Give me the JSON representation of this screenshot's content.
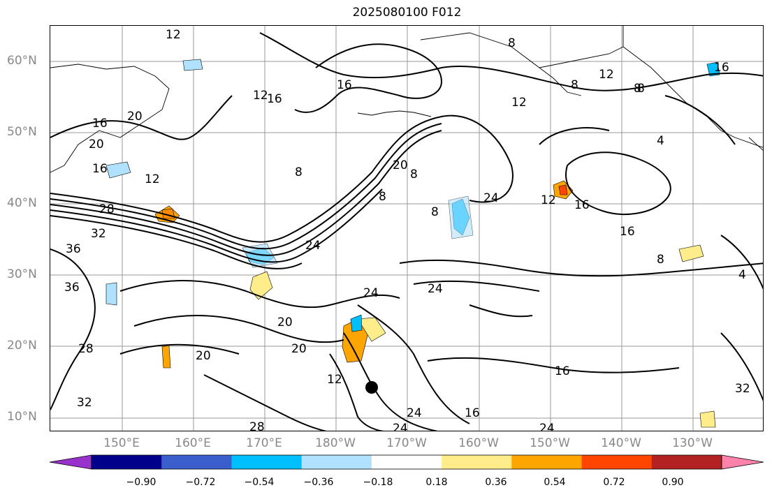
{
  "title": "2025080100 F012",
  "lat_labels": [
    "60°N",
    "50°N",
    "40°N",
    "30°N",
    "20°N",
    "10°N"
  ],
  "lon_labels": [
    "150°E",
    "160°E",
    "170°E",
    "180°W",
    "170°W",
    "160°W",
    "150°W",
    "140°W",
    "130°W"
  ],
  "colorbar": {
    "ticks": [
      "−0.90",
      "−0.72",
      "−0.54",
      "−0.36",
      "−0.18",
      "0.18",
      "0.36",
      "0.54",
      "0.72",
      "0.90"
    ],
    "colors": [
      "#9932cc",
      "#00008b",
      "#3a5fcd",
      "#00bfff",
      "#b0e2ff",
      "#ffffff",
      "#ffec8b",
      "#ffa500",
      "#ff4500",
      "#b22222",
      "#ff82ab"
    ]
  },
  "contour_labels": [
    "12",
    "16",
    "20",
    "16",
    "12",
    "8",
    "16",
    "12",
    "8",
    "8",
    "12",
    "16",
    "20",
    "16",
    "12",
    "8",
    "20",
    "8",
    "24",
    "8",
    "8",
    "12",
    "16",
    "24",
    "28",
    "32",
    "36",
    "36",
    "28",
    "32",
    "24",
    "20",
    "20",
    "20",
    "24",
    "24",
    "12",
    "16",
    "16",
    "28",
    "24",
    "24",
    "16",
    "8",
    "4",
    "4",
    "32",
    "8"
  ],
  "storm_marker": "tropical-cyclone-center"
}
